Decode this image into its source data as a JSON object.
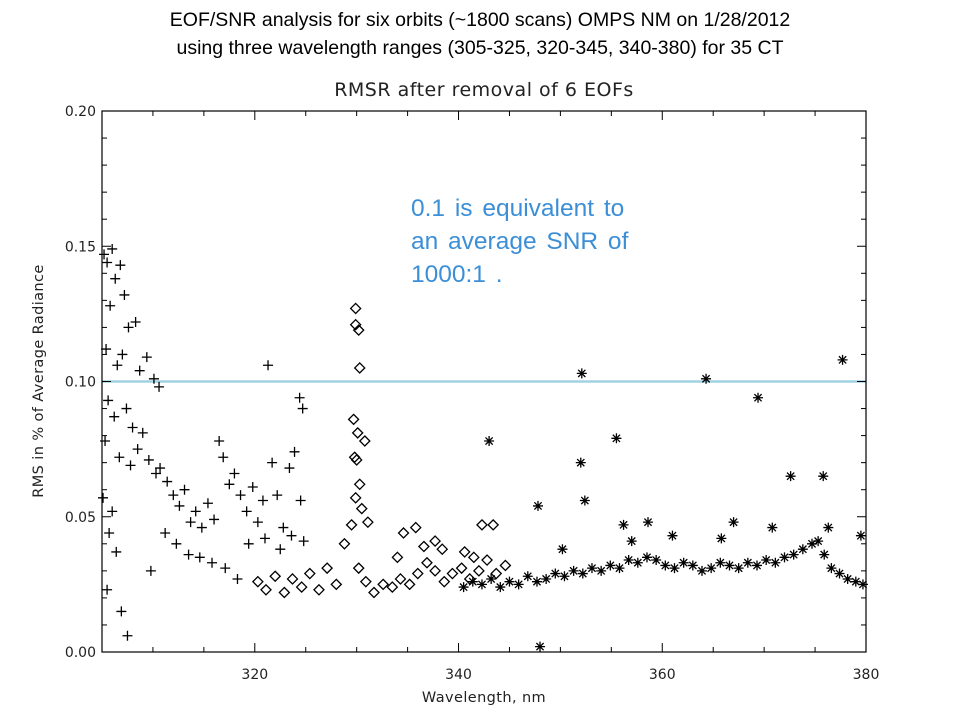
{
  "slide": {
    "title_line1": "EOF/SNR analysis for six orbits (~1800 scans) OMPS NM on 1/28/2012",
    "title_line2": "using three wavelength ranges (305-325, 320-345, 340-380) for 35 CT"
  },
  "annotation": {
    "line1": "0.1 is equivalent to",
    "line2": "an average SNR of",
    "line3": "1000:1 ."
  },
  "chart_data": {
    "type": "scatter",
    "title": "RMSR after removal of 6 EOFs",
    "xlabel": "Wavelength, nm",
    "ylabel": "RMS in % of Average Radiance",
    "xlim": [
      305,
      380
    ],
    "ylim": [
      0,
      0.2
    ],
    "xticks": [
      320,
      340,
      360,
      380
    ],
    "xtick_labels": [
      "320",
      "340",
      "360",
      "380"
    ],
    "yticks": [
      0,
      0.05,
      0.1,
      0.15,
      0.2
    ],
    "ytick_labels": [
      "0.00",
      "0.05",
      "0.10",
      "0.15",
      "0.20"
    ],
    "grid": false,
    "reference_line": {
      "y": 0.1,
      "color": "#9fd3e3"
    },
    "series": [
      {
        "marker": "plus",
        "range_nm": [
          305,
          325
        ],
        "points": [
          [
            305.2,
            0.147
          ],
          [
            305.5,
            0.144
          ],
          [
            306.0,
            0.149
          ],
          [
            306.3,
            0.138
          ],
          [
            306.8,
            0.143
          ],
          [
            307.2,
            0.132
          ],
          [
            305.8,
            0.128
          ],
          [
            307.6,
            0.12
          ],
          [
            308.3,
            0.122
          ],
          [
            305.4,
            0.112
          ],
          [
            306.5,
            0.106
          ],
          [
            307.0,
            0.11
          ],
          [
            308.7,
            0.104
          ],
          [
            309.4,
            0.109
          ],
          [
            310.1,
            0.101
          ],
          [
            310.6,
            0.098
          ],
          [
            305.6,
            0.093
          ],
          [
            306.2,
            0.087
          ],
          [
            307.4,
            0.09
          ],
          [
            308.0,
            0.083
          ],
          [
            309.0,
            0.081
          ],
          [
            305.3,
            0.078
          ],
          [
            306.7,
            0.072
          ],
          [
            307.8,
            0.069
          ],
          [
            308.5,
            0.075
          ],
          [
            309.6,
            0.071
          ],
          [
            310.3,
            0.066
          ],
          [
            305.1,
            0.057
          ],
          [
            306.0,
            0.052
          ],
          [
            305.7,
            0.044
          ],
          [
            306.4,
            0.037
          ],
          [
            305.5,
            0.023
          ],
          [
            306.9,
            0.015
          ],
          [
            307.5,
            0.006
          ],
          [
            309.8,
            0.03
          ],
          [
            310.7,
            0.068
          ],
          [
            311.4,
            0.063
          ],
          [
            312.0,
            0.058
          ],
          [
            312.6,
            0.054
          ],
          [
            313.1,
            0.06
          ],
          [
            313.7,
            0.048
          ],
          [
            314.2,
            0.052
          ],
          [
            314.8,
            0.046
          ],
          [
            315.4,
            0.055
          ],
          [
            316.0,
            0.049
          ],
          [
            316.5,
            0.078
          ],
          [
            316.9,
            0.072
          ],
          [
            317.5,
            0.062
          ],
          [
            318.0,
            0.066
          ],
          [
            318.6,
            0.058
          ],
          [
            319.2,
            0.052
          ],
          [
            319.8,
            0.061
          ],
          [
            320.3,
            0.048
          ],
          [
            320.8,
            0.056
          ],
          [
            321.3,
            0.106
          ],
          [
            321.7,
            0.07
          ],
          [
            322.2,
            0.058
          ],
          [
            322.8,
            0.046
          ],
          [
            323.4,
            0.068
          ],
          [
            323.9,
            0.074
          ],
          [
            324.4,
            0.094
          ],
          [
            324.7,
            0.09
          ],
          [
            324.5,
            0.056
          ],
          [
            311.2,
            0.044
          ],
          [
            312.3,
            0.04
          ],
          [
            313.5,
            0.036
          ],
          [
            314.6,
            0.035
          ],
          [
            315.8,
            0.033
          ],
          [
            317.1,
            0.031
          ],
          [
            318.3,
            0.027
          ],
          [
            319.4,
            0.04
          ],
          [
            321.0,
            0.042
          ],
          [
            322.5,
            0.038
          ],
          [
            323.6,
            0.043
          ],
          [
            324.8,
            0.041
          ]
        ]
      },
      {
        "marker": "diamond",
        "range_nm": [
          320,
          345
        ],
        "points": [
          [
            320.3,
            0.026
          ],
          [
            321.1,
            0.023
          ],
          [
            322.0,
            0.028
          ],
          [
            322.9,
            0.022
          ],
          [
            323.7,
            0.027
          ],
          [
            324.6,
            0.024
          ],
          [
            325.4,
            0.029
          ],
          [
            326.3,
            0.023
          ],
          [
            327.1,
            0.031
          ],
          [
            328.0,
            0.025
          ],
          [
            328.8,
            0.04
          ],
          [
            329.5,
            0.047
          ],
          [
            330.2,
            0.031
          ],
          [
            330.9,
            0.026
          ],
          [
            331.7,
            0.022
          ],
          [
            332.6,
            0.025
          ],
          [
            333.5,
            0.024
          ],
          [
            334.3,
            0.027
          ],
          [
            335.2,
            0.025
          ],
          [
            336.0,
            0.029
          ],
          [
            336.9,
            0.033
          ],
          [
            337.7,
            0.03
          ],
          [
            338.6,
            0.026
          ],
          [
            339.4,
            0.029
          ],
          [
            340.3,
            0.031
          ],
          [
            341.1,
            0.027
          ],
          [
            342.0,
            0.03
          ],
          [
            342.8,
            0.034
          ],
          [
            343.7,
            0.029
          ],
          [
            344.6,
            0.032
          ],
          [
            329.9,
            0.127
          ],
          [
            329.9,
            0.121
          ],
          [
            330.2,
            0.119
          ],
          [
            330.3,
            0.105
          ],
          [
            329.7,
            0.086
          ],
          [
            330.1,
            0.081
          ],
          [
            329.8,
            0.072
          ],
          [
            330.0,
            0.071
          ],
          [
            330.3,
            0.062
          ],
          [
            329.9,
            0.057
          ],
          [
            330.5,
            0.053
          ],
          [
            331.1,
            0.048
          ],
          [
            330.8,
            0.078
          ],
          [
            334.6,
            0.044
          ],
          [
            335.8,
            0.046
          ],
          [
            336.6,
            0.039
          ],
          [
            337.7,
            0.041
          ],
          [
            338.4,
            0.038
          ],
          [
            342.3,
            0.047
          ],
          [
            343.4,
            0.047
          ],
          [
            340.6,
            0.037
          ],
          [
            341.5,
            0.035
          ],
          [
            334.0,
            0.035
          ]
        ]
      },
      {
        "marker": "asterisk",
        "range_nm": [
          340,
          380
        ],
        "points": [
          [
            340.5,
            0.024
          ],
          [
            341.4,
            0.026
          ],
          [
            342.3,
            0.025
          ],
          [
            343.2,
            0.027
          ],
          [
            344.1,
            0.024
          ],
          [
            345.0,
            0.026
          ],
          [
            345.9,
            0.025
          ],
          [
            346.8,
            0.028
          ],
          [
            347.7,
            0.026
          ],
          [
            348.6,
            0.027
          ],
          [
            349.5,
            0.029
          ],
          [
            350.4,
            0.028
          ],
          [
            351.3,
            0.03
          ],
          [
            352.2,
            0.029
          ],
          [
            353.1,
            0.031
          ],
          [
            354.0,
            0.03
          ],
          [
            354.9,
            0.032
          ],
          [
            355.8,
            0.031
          ],
          [
            356.7,
            0.034
          ],
          [
            357.6,
            0.033
          ],
          [
            358.5,
            0.035
          ],
          [
            359.4,
            0.034
          ],
          [
            360.3,
            0.032
          ],
          [
            361.2,
            0.031
          ],
          [
            362.1,
            0.033
          ],
          [
            363.0,
            0.032
          ],
          [
            363.9,
            0.03
          ],
          [
            364.8,
            0.031
          ],
          [
            365.7,
            0.033
          ],
          [
            366.6,
            0.032
          ],
          [
            367.5,
            0.031
          ],
          [
            368.4,
            0.033
          ],
          [
            369.3,
            0.032
          ],
          [
            370.2,
            0.034
          ],
          [
            371.1,
            0.033
          ],
          [
            372.0,
            0.035
          ],
          [
            372.9,
            0.036
          ],
          [
            373.8,
            0.038
          ],
          [
            374.7,
            0.04
          ],
          [
            375.3,
            0.041
          ],
          [
            375.9,
            0.036
          ],
          [
            376.6,
            0.031
          ],
          [
            377.4,
            0.029
          ],
          [
            378.2,
            0.027
          ],
          [
            379.0,
            0.026
          ],
          [
            379.7,
            0.025
          ],
          [
            343.0,
            0.078
          ],
          [
            347.8,
            0.054
          ],
          [
            348.0,
            0.002
          ],
          [
            352.1,
            0.103
          ],
          [
            352.0,
            0.07
          ],
          [
            352.4,
            0.056
          ],
          [
            355.5,
            0.079
          ],
          [
            356.2,
            0.047
          ],
          [
            358.6,
            0.048
          ],
          [
            364.3,
            0.101
          ],
          [
            367.0,
            0.048
          ],
          [
            369.4,
            0.094
          ],
          [
            370.8,
            0.046
          ],
          [
            372.6,
            0.065
          ],
          [
            375.8,
            0.065
          ],
          [
            377.7,
            0.108
          ],
          [
            376.3,
            0.046
          ],
          [
            379.5,
            0.043
          ],
          [
            361.0,
            0.043
          ],
          [
            365.8,
            0.042
          ],
          [
            350.2,
            0.038
          ],
          [
            357.0,
            0.041
          ]
        ]
      }
    ]
  }
}
